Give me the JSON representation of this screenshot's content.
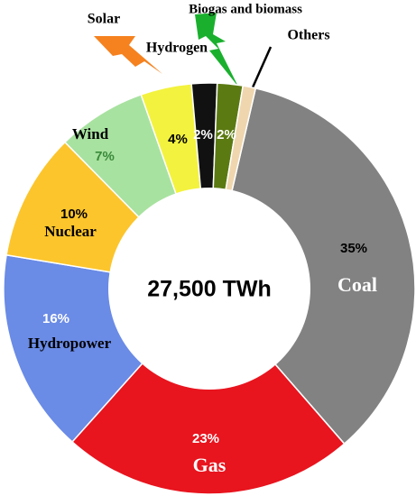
{
  "chart_data": {
    "type": "donut",
    "center_label": "27,500 TWh",
    "categories": [
      "Coal",
      "Gas",
      "Hydropower",
      "Nuclear",
      "Wind",
      "Solar",
      "Hydrogen",
      "Biogas and biomass",
      "Others"
    ],
    "values": [
      35,
      23,
      16,
      10,
      7,
      4,
      2,
      2,
      1
    ],
    "value_labels": [
      "35%",
      "23%",
      "16%",
      "10%",
      "7%",
      "4%",
      "2%",
      "2%",
      null
    ],
    "colors": [
      "#828282",
      "#e8141e",
      "#6a8be6",
      "#fcc52c",
      "#a8e2a0",
      "#f3f23e",
      "#111111",
      "#5b7a12",
      "#efd6ae"
    ]
  }
}
